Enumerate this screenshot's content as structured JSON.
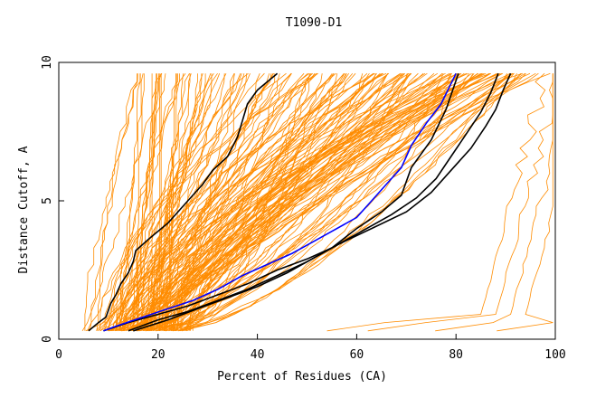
{
  "chart_data": {
    "type": "line",
    "title": "T1090-D1",
    "xlabel": "Percent of Residues (CA)",
    "ylabel": "Distance Cutoff, A",
    "xlim": [
      0,
      100
    ],
    "ylim": [
      0,
      10
    ],
    "x_ticks": [
      0,
      20,
      40,
      60,
      80,
      100
    ],
    "y_ticks": [
      0,
      5,
      10
    ],
    "grid": false,
    "legend": "none",
    "colors": {
      "background_lines": "#ff8c00",
      "highlight_black": "#000000",
      "highlight_blue": "#0000ff"
    },
    "highlight_series": [
      {
        "color": "#000000",
        "points": [
          [
            6,
            0.3
          ],
          [
            8,
            0.6
          ],
          [
            9.5,
            0.8
          ],
          [
            10.5,
            1.3
          ],
          [
            11.5,
            1.6
          ],
          [
            12.5,
            2.0
          ],
          [
            14,
            2.4
          ],
          [
            15,
            2.8
          ],
          [
            15.5,
            3.2
          ],
          [
            18,
            3.6
          ],
          [
            22,
            4.2
          ],
          [
            26,
            5.0
          ],
          [
            29,
            5.6
          ],
          [
            31,
            6.1
          ],
          [
            34,
            6.6
          ],
          [
            36,
            7.3
          ],
          [
            37,
            7.9
          ],
          [
            38,
            8.5
          ],
          [
            40,
            9.0
          ],
          [
            42,
            9.3
          ],
          [
            44,
            9.6
          ]
        ]
      },
      {
        "color": "#000000",
        "points": [
          [
            9,
            0.3
          ],
          [
            14,
            0.6
          ],
          [
            20,
            0.9
          ],
          [
            26,
            1.2
          ],
          [
            32,
            1.6
          ],
          [
            38,
            2.0
          ],
          [
            44,
            2.5
          ],
          [
            50,
            2.9
          ],
          [
            55,
            3.3
          ],
          [
            60,
            4.0
          ],
          [
            65,
            4.6
          ],
          [
            69,
            5.2
          ],
          [
            71,
            6.2
          ],
          [
            75,
            7.2
          ],
          [
            78,
            8.3
          ],
          [
            80.5,
            9.6
          ]
        ]
      },
      {
        "color": "#000000",
        "points": [
          [
            14,
            0.3
          ],
          [
            20,
            0.7
          ],
          [
            26,
            1.0
          ],
          [
            32,
            1.4
          ],
          [
            38,
            1.8
          ],
          [
            44,
            2.3
          ],
          [
            50,
            2.8
          ],
          [
            55,
            3.3
          ],
          [
            61,
            3.9
          ],
          [
            67,
            4.5
          ],
          [
            72,
            5.1
          ],
          [
            76,
            5.8
          ],
          [
            79,
            6.6
          ],
          [
            82,
            7.4
          ],
          [
            85,
            8.2
          ],
          [
            87,
            8.9
          ],
          [
            88.5,
            9.6
          ]
        ]
      },
      {
        "color": "#000000",
        "points": [
          [
            15,
            0.3
          ],
          [
            22,
            0.7
          ],
          [
            28,
            1.1
          ],
          [
            34,
            1.5
          ],
          [
            40,
            1.9
          ],
          [
            46,
            2.4
          ],
          [
            51,
            2.9
          ],
          [
            56,
            3.4
          ],
          [
            63,
            4.0
          ],
          [
            70,
            4.6
          ],
          [
            75,
            5.3
          ],
          [
            79,
            6.1
          ],
          [
            83,
            6.9
          ],
          [
            86,
            7.7
          ],
          [
            88,
            8.3
          ],
          [
            89.5,
            9.0
          ],
          [
            91,
            9.6
          ]
        ]
      },
      {
        "color": "#0000ff",
        "points": [
          [
            9,
            0.3
          ],
          [
            12,
            0.5
          ],
          [
            17,
            0.8
          ],
          [
            22,
            1.1
          ],
          [
            27,
            1.4
          ],
          [
            32,
            1.8
          ],
          [
            37,
            2.3
          ],
          [
            42,
            2.7
          ],
          [
            47,
            3.1
          ],
          [
            51,
            3.5
          ],
          [
            55,
            3.9
          ],
          [
            60,
            4.4
          ],
          [
            63,
            5.0
          ],
          [
            66,
            5.6
          ],
          [
            69,
            6.2
          ],
          [
            71,
            7.0
          ],
          [
            74,
            7.8
          ],
          [
            77,
            8.5
          ],
          [
            80,
            9.6
          ]
        ]
      }
    ]
  }
}
